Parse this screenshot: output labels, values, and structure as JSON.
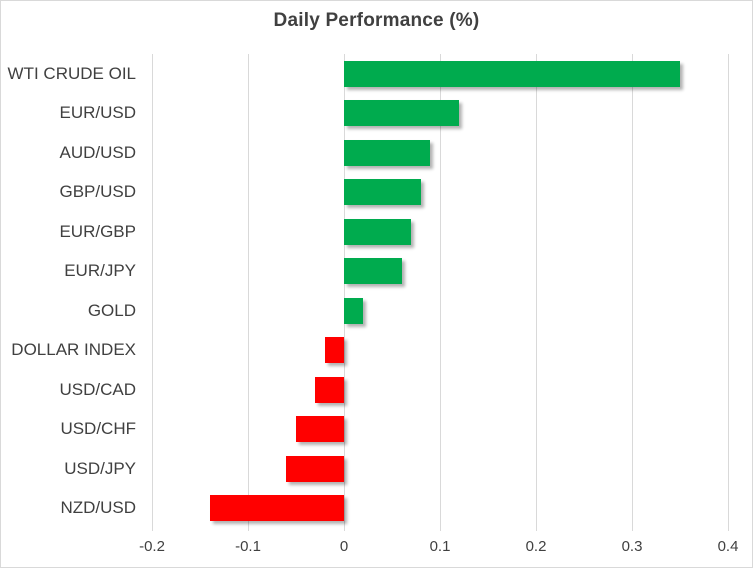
{
  "chart_data": {
    "type": "bar",
    "orientation": "horizontal",
    "title": "Daily Performance (%)",
    "categories": [
      "WTI CRUDE OIL",
      "EUR/USD",
      "AUD/USD",
      "GBP/USD",
      "EUR/GBP",
      "EUR/JPY",
      "GOLD",
      "DOLLAR INDEX",
      "USD/CAD",
      "USD/CHF",
      "USD/JPY",
      "NZD/USD"
    ],
    "values": [
      0.35,
      0.12,
      0.09,
      0.08,
      0.07,
      0.06,
      0.02,
      -0.02,
      -0.03,
      -0.05,
      -0.06,
      -0.14
    ],
    "xlim": [
      -0.2,
      0.4
    ],
    "x_ticks": [
      -0.2,
      -0.1,
      0,
      0.1,
      0.2,
      0.3,
      0.4
    ],
    "x_tick_labels": [
      "-0.2",
      "-0.1",
      "0",
      "0.1",
      "0.2",
      "0.3",
      "0.4"
    ],
    "grid": true,
    "legend": "none",
    "colors": {
      "positive": "#00AB4E",
      "negative": "#FF0000",
      "gridline": "#D9D9D9",
      "text": "#404040",
      "border": "#D9D9D9",
      "background": "#FFFFFF"
    }
  }
}
